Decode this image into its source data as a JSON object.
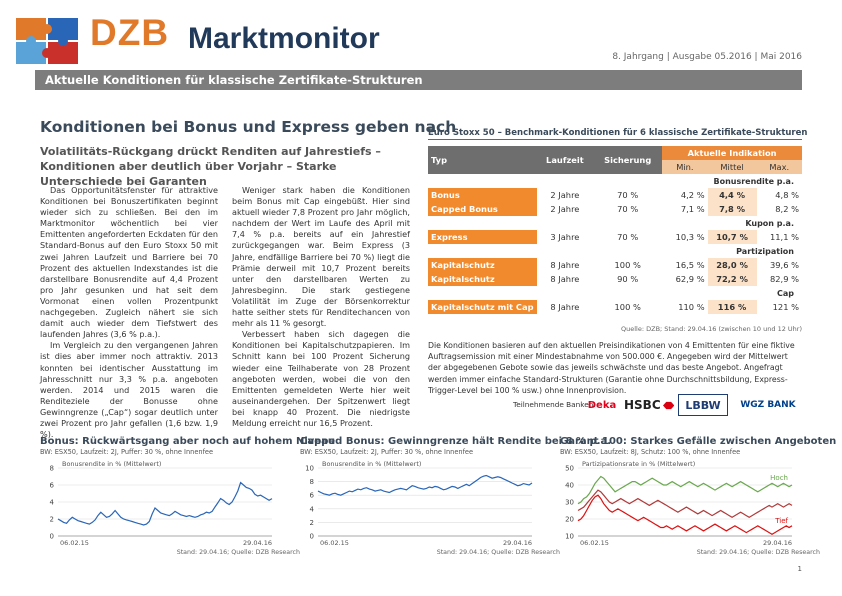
{
  "header": {
    "brand_prefix": "DZB",
    "brand_name": "Marktmonitor",
    "issue_info": "8. Jahrgang | Ausgabe 05.2016 | Mai 2016",
    "banner": "Aktuelle Konditionen für klassische Zertifikate-Strukturen"
  },
  "article": {
    "headline": "Konditionen bei Bonus und Express geben nach",
    "subheadline": "Volatilitäts-Rückgang drückt Renditen auf Jahrestiefs – Konditionen aber deutlich über Vorjahr – Starke Unterschiede bei Garanten",
    "col1": [
      "Das Opportunitätsfenster für attraktive Konditionen bei Bonuszertifikaten beginnt wieder sich zu schließen. Bei den im Marktmonitor wöchentlich bei vier Emittenten angeforderten Eckdaten für den Standard-Bonus auf den Euro Stoxx 50 mit zwei Jahren Laufzeit und Barriere bei 70 Prozent des aktuellen Indexstandes ist die darstellbare Bonusrendite auf 4,4 Prozent pro Jahr gesunken und hat seit dem Vormonat einen vollen Prozentpunkt nachgegeben. Zugleich nähert sie sich damit auch wieder dem Tiefstwert des laufenden Jahres (3,6 % p.a.).",
      "Im Vergleich zu den vergangenen Jahren ist dies aber immer noch attraktiv. 2013 konnten bei identischer Ausstattung im Jahresschnitt nur 3,3 % p.a. angeboten werden. 2014 und 2015 waren die Renditeziele der Bonusse ohne Gewinngrenze („Cap“) sogar deutlich unter zwei Prozent pro Jahr gefallen (1,6 bzw. 1,9 %)."
    ],
    "col2": [
      "Weniger stark haben die Konditionen beim Bonus mit Cap eingebüßt. Hier sind aktuell wieder 7,8 Prozent pro Jahr möglich, nachdem der Wert im Laufe des April mit 7,4 % p.a. bereits auf ein Jahrestief zurückgegangen war. Beim Express (3 Jahre, endfällige Barriere bei 70 %) liegt die Prämie derweil mit 10,7 Prozent bereits unter den darstellbaren Werten zu Jahresbeginn. Die stark gestiegene Volatilität im Zuge der Börsenkorrektur hatte seither stets für Renditechancen von mehr als 11 % gesorgt.",
      "Verbessert haben sich dagegen die Konditionen bei Kapitalschutzpapieren. Im Schnitt kann bei 100 Prozent Sicherung wieder eine Teilhaberate von 28 Prozent angeboten werden, wobei die von den Emittenten gemeldeten Werte hier weit auseinandergehen. Der Spitzenwert liegt bei knapp 40 Prozent. Die niedrigste Meldung erreicht nur 16,5 Prozent."
    ]
  },
  "table": {
    "title": "Euro Stoxx 50 – Benchmark-Konditionen für 6 klassische Zertifikate-Strukturen",
    "headers": {
      "typ": "Typ",
      "laufzeit": "Laufzeit",
      "sicherung": "Sicherung",
      "indikation": "Aktuelle Indikation",
      "min": "Min.",
      "mittel": "Mittel",
      "max": "Max."
    },
    "groups": [
      {
        "label": "Bonusrendite p.a.",
        "rows": [
          {
            "name": "Bonus",
            "laufzeit": "2 Jahre",
            "sicherung": "70 %",
            "min": "4,2 %",
            "mittel": "4,4 %",
            "max": "4,8 %"
          },
          {
            "name": "Capped Bonus",
            "laufzeit": "2 Jahre",
            "sicherung": "70 %",
            "min": "7,1 %",
            "mittel": "7,8 %",
            "max": "8,2 %"
          }
        ]
      },
      {
        "label": "Kupon p.a.",
        "rows": [
          {
            "name": "Express",
            "laufzeit": "3 Jahre",
            "sicherung": "70 %",
            "min": "10,3 %",
            "mittel": "10,7 %",
            "max": "11,1 %"
          }
        ]
      },
      {
        "label": "Partizipation",
        "rows": [
          {
            "name": "Kapitalschutz",
            "laufzeit": "8 Jahre",
            "sicherung": "100 %",
            "min": "16,5 %",
            "mittel": "28,0 %",
            "max": "39,6 %"
          },
          {
            "name": "Kapitalschutz",
            "laufzeit": "8 Jahre",
            "sicherung": "90 %",
            "min": "62,9 %",
            "mittel": "72,2 %",
            "max": "82,9 %"
          }
        ]
      },
      {
        "label": "Cap",
        "rows": [
          {
            "name": "Kapitalschutz mit Cap",
            "laufzeit": "8 Jahre",
            "sicherung": "100 %",
            "min": "110 %",
            "mittel": "116 %",
            "max": "121 %"
          }
        ]
      }
    ],
    "source": "Quelle: DZB; Stand: 29.04.16 (zwischen 10 und 12 Uhr)"
  },
  "note": "Die Konditionen basieren auf den aktuellen Preisindikationen von 4 Emittenten für eine fiktive Auftragsemission mit einer Mindestabnahme von 500.000 €. Angegeben wird der Mittelwert der abgegebenen Gebote sowie das jeweils schwächste und das beste Angebot. Angefragt werden immer einfache Standard-Strukturen (Garantie ohne Durchschnittsbildung, Express-Trigger-Level bei 100 % usw.) ohne Innenprovision.",
  "banks": {
    "label": "Teilnehmende Banken:",
    "names": [
      "Deka",
      "HSBC",
      "LBBW",
      "WGZ BANK"
    ],
    "colors": {
      "deka": "#e2001a",
      "hsbc": "#db0011",
      "lbbw": "#1f3d73",
      "wgz": "#003f8a"
    }
  },
  "chart_data": [
    {
      "type": "line",
      "title": "Bonus: Rückwärtsgang aber noch auf hohem Niveau",
      "subtitle": "BW: ESX50, Laufzeit: 2J, Puffer: 30 %, ohne Innenfee",
      "ylabel": "Bonusrendite in % (Mittelwert)",
      "x_start": "06.02.15",
      "x_end": "29.04.16",
      "ylim": [
        0,
        8
      ],
      "yticks": [
        0,
        2,
        4,
        6,
        8
      ],
      "series": [
        {
          "color": "#2a66b8",
          "values": [
            2.0,
            1.8,
            1.6,
            1.5,
            1.9,
            2.2,
            2.0,
            1.8,
            1.7,
            1.6,
            1.5,
            1.4,
            1.6,
            1.9,
            2.4,
            2.8,
            2.5,
            2.2,
            2.3,
            2.6,
            3.0,
            2.6,
            2.2,
            2.0,
            1.9,
            1.8,
            1.7,
            1.6,
            1.5,
            1.4,
            1.3,
            1.4,
            1.7,
            2.6,
            3.3,
            3.0,
            2.7,
            2.6,
            2.5,
            2.4,
            2.6,
            2.9,
            2.7,
            2.5,
            2.4,
            2.3,
            2.4,
            2.3,
            2.2,
            2.3,
            2.5,
            2.6,
            2.8,
            2.7,
            2.9,
            3.4,
            3.9,
            4.4,
            4.2,
            3.9,
            3.7,
            4.0,
            4.6,
            5.3,
            6.3,
            6.0,
            5.7,
            5.6,
            5.4,
            4.9,
            4.7,
            4.8,
            4.6,
            4.4,
            4.2,
            4.4
          ]
        }
      ],
      "source": "Stand: 29.04.16; Quelle: DZB Research"
    },
    {
      "type": "line",
      "title": "Capped Bonus: Gewinngrenze hält Rendite bei 8 % p.a.",
      "subtitle": "BW: ESX50, Laufzeit: 2J, Puffer: 30 %, ohne Innenfee",
      "ylabel": "Bonusrendite in % (Mittelwert)",
      "x_start": "06.02.15",
      "x_end": "29.04.16",
      "ylim": [
        0,
        10
      ],
      "yticks": [
        0,
        2,
        4,
        6,
        8,
        10
      ],
      "series": [
        {
          "color": "#2a66b8",
          "values": [
            6.6,
            6.4,
            6.2,
            6.1,
            6.0,
            6.2,
            6.3,
            6.1,
            6.0,
            6.2,
            6.4,
            6.6,
            6.5,
            6.7,
            6.9,
            6.8,
            7.0,
            7.1,
            6.9,
            6.8,
            6.6,
            6.7,
            6.8,
            6.6,
            6.5,
            6.4,
            6.6,
            6.8,
            6.9,
            7.0,
            6.9,
            6.8,
            7.1,
            7.4,
            7.3,
            7.1,
            7.0,
            6.9,
            7.0,
            7.2,
            7.1,
            7.3,
            7.2,
            7.0,
            6.8,
            6.9,
            7.1,
            7.3,
            7.2,
            7.0,
            7.2,
            7.4,
            7.6,
            7.4,
            7.7,
            8.0,
            8.3,
            8.6,
            8.8,
            8.9,
            8.7,
            8.5,
            8.6,
            8.7,
            8.6,
            8.4,
            8.2,
            8.0,
            7.8,
            7.6,
            7.4,
            7.5,
            7.7,
            7.6,
            7.5,
            7.8
          ]
        }
      ],
      "source": "Stand: 29.04.16; Quelle: DZB Research"
    },
    {
      "type": "line",
      "title": "Garant 100: Starkes Gefälle zwischen Angeboten",
      "subtitle": "BW: ESX50, Laufzeit: 8J, Schutz: 100 %, ohne Innenfee",
      "ylabel": "Partizipationsrate in % (Mittelwert)",
      "x_start": "06.02.15",
      "x_end": "29.04.16",
      "ylim": [
        10,
        50
      ],
      "yticks": [
        10,
        20,
        30,
        40,
        50
      ],
      "series": [
        {
          "name": "Hoch",
          "color": "#6aa84f",
          "values": [
            29,
            30,
            32,
            33,
            35,
            38,
            41,
            43,
            45,
            44,
            42,
            40,
            38,
            36,
            37,
            38,
            39,
            40,
            41,
            42,
            42,
            41,
            40,
            41,
            42,
            43,
            44,
            43,
            42,
            41,
            40,
            40,
            41,
            42,
            41,
            40,
            39,
            40,
            41,
            42,
            41,
            40,
            39,
            40,
            41,
            40,
            39,
            38,
            37,
            38,
            39,
            40,
            41,
            40,
            39,
            40,
            41,
            42,
            41,
            40,
            39,
            38,
            37,
            36,
            37,
            38,
            39,
            40,
            41,
            40,
            39,
            40,
            41,
            40,
            39,
            40
          ]
        },
        {
          "name": "",
          "color": "#b03a3a",
          "values": [
            25,
            26,
            27,
            29,
            31,
            33,
            35,
            37,
            36,
            34,
            32,
            30,
            29,
            30,
            31,
            32,
            31,
            30,
            29,
            30,
            31,
            32,
            31,
            30,
            29,
            28,
            29,
            30,
            31,
            30,
            29,
            28,
            27,
            26,
            25,
            24,
            25,
            26,
            27,
            26,
            25,
            24,
            23,
            24,
            25,
            24,
            23,
            22,
            23,
            24,
            25,
            24,
            23,
            22,
            21,
            22,
            23,
            24,
            23,
            22,
            21,
            22,
            23,
            24,
            25,
            26,
            27,
            28,
            27,
            28,
            29,
            28,
            27,
            28,
            29,
            28
          ]
        },
        {
          "name": "Tief",
          "color": "#d11",
          "values": [
            19,
            20,
            22,
            25,
            28,
            31,
            33,
            34,
            32,
            29,
            27,
            25,
            24,
            25,
            26,
            25,
            24,
            23,
            22,
            21,
            20,
            19,
            20,
            21,
            20,
            19,
            18,
            17,
            16,
            15,
            15,
            16,
            15,
            14,
            15,
            16,
            15,
            14,
            13,
            14,
            15,
            16,
            15,
            14,
            13,
            14,
            15,
            16,
            17,
            16,
            15,
            14,
            13,
            14,
            15,
            16,
            15,
            14,
            13,
            12,
            13,
            14,
            15,
            16,
            15,
            14,
            13,
            12,
            11,
            12,
            13,
            14,
            15,
            16,
            15,
            16
          ]
        }
      ],
      "source": "Stand: 29.04.16; Quelle: DZB Research"
    }
  ],
  "footer": {
    "page": "1"
  }
}
